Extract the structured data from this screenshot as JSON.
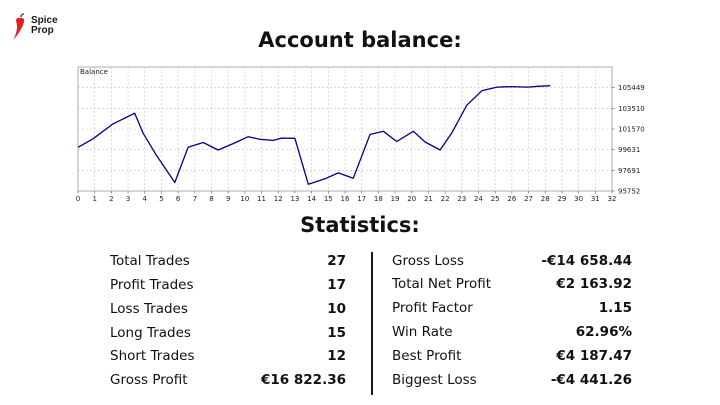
{
  "brand": {
    "line1": "Spice",
    "line2": "Prop",
    "logo_icon": "chili-pepper-icon",
    "accent": "#e01f26"
  },
  "title": "Account balance:",
  "stats_title": "Statistics:",
  "chart_data": {
    "type": "line",
    "title": "Balance",
    "xlabel": "",
    "ylabel": "",
    "xlim": [
      0,
      32
    ],
    "ylim": [
      95752,
      107388
    ],
    "grid": true,
    "line_color": "#00008b",
    "x_ticks": [
      0,
      1,
      2,
      3,
      4,
      5,
      6,
      7,
      8,
      9,
      10,
      11,
      12,
      13,
      14,
      15,
      16,
      17,
      18,
      19,
      20,
      21,
      22,
      23,
      24,
      25,
      26,
      27,
      28,
      29,
      30,
      31,
      32
    ],
    "y_ticks": [
      95752,
      97691,
      99631,
      101570,
      103510,
      105449
    ],
    "y_tick_labels": [
      "95752",
      "97691",
      "99631",
      "101570",
      "103510",
      "105449"
    ],
    "series": [
      {
        "x": [
          0,
          0.9,
          2.1,
          3.4,
          3.9,
          4.7,
          5.8,
          6.6,
          7.5,
          8.4,
          9.3,
          10.2,
          10.9,
          11.7,
          12.2,
          13.0,
          13.8,
          14.8,
          15.6,
          16.5,
          17.5,
          18.3,
          19.1,
          20.1,
          20.8,
          21.7,
          22.4,
          23.3,
          24.2,
          25.1,
          26.0,
          26.9,
          27.6,
          28.3
        ],
        "y": [
          99850,
          100650,
          102050,
          103050,
          101180,
          99100,
          96550,
          99850,
          100300,
          99600,
          100200,
          100850,
          100600,
          100500,
          100720,
          100700,
          96380,
          96900,
          97450,
          96950,
          101050,
          101350,
          100400,
          101350,
          100350,
          99600,
          101200,
          103800,
          105150,
          105500,
          105550,
          105500,
          105580,
          105630
        ]
      }
    ]
  },
  "stats_left": [
    {
      "label": "Total Trades",
      "value": "27"
    },
    {
      "label": "Profit Trades",
      "value": "17"
    },
    {
      "label": "Loss Trades",
      "value": "10"
    },
    {
      "label": "Long Trades",
      "value": "15"
    },
    {
      "label": "Short Trades",
      "value": "12"
    },
    {
      "label": "Gross Profit",
      "value": "€16 822.36"
    }
  ],
  "stats_right": [
    {
      "label": "Gross Loss",
      "value": "-€14 658.44"
    },
    {
      "label": "Total Net Profit",
      "value": "€2 163.92"
    },
    {
      "label": "Profit Factor",
      "value": "1.15"
    },
    {
      "label": "Win Rate",
      "value": "62.96%"
    },
    {
      "label": "Best Profit",
      "value": "€4 187.47"
    },
    {
      "label": "Biggest Loss",
      "value": "-€4 441.26"
    }
  ]
}
